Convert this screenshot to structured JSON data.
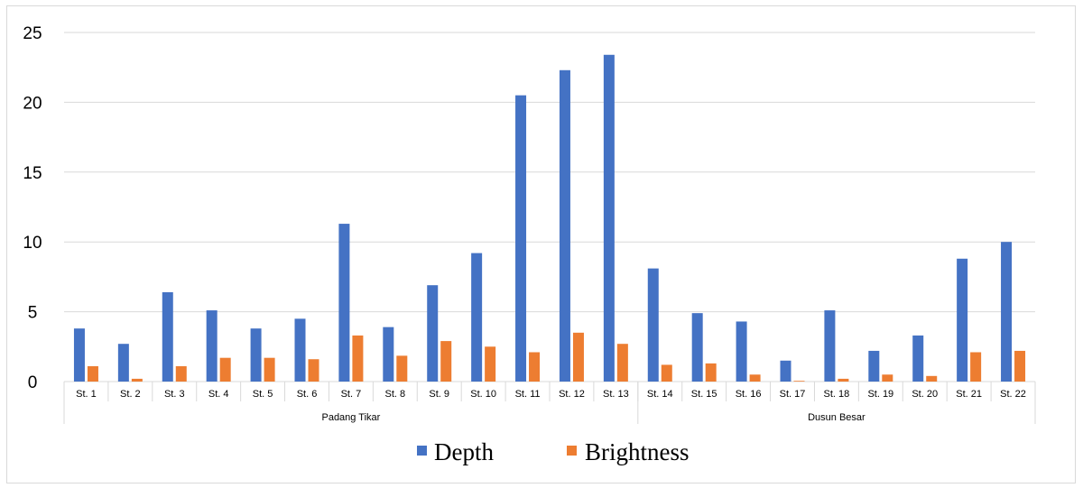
{
  "chart_data": {
    "type": "bar",
    "categories": [
      "St. 1",
      "St. 2",
      "St. 3",
      "St. 4",
      "St. 5",
      "St. 6",
      "St. 7",
      "St. 8",
      "St. 9",
      "St. 10",
      "St. 11",
      "St. 12",
      "St. 13",
      "St. 14",
      "St. 15",
      "St. 16",
      "St. 17",
      "St. 18",
      "St. 19",
      "St. 20",
      "St. 21",
      "St. 22"
    ],
    "groups": [
      {
        "label": "Padang Tikar",
        "categories": 13
      },
      {
        "label": "Dusun Besar",
        "categories": 9
      }
    ],
    "series": [
      {
        "name": "Depth",
        "color": "#4472c4",
        "values": [
          3.8,
          2.7,
          6.4,
          5.1,
          3.8,
          4.5,
          11.3,
          3.9,
          6.9,
          9.2,
          20.5,
          22.3,
          23.4,
          8.1,
          4.9,
          4.3,
          1.5,
          5.1,
          2.2,
          3.3,
          8.8,
          10.0
        ]
      },
      {
        "name": "Brightness",
        "color": "#ed7d31",
        "values": [
          1.1,
          0.2,
          1.1,
          1.7,
          1.7,
          1.6,
          3.3,
          1.85,
          2.9,
          2.5,
          2.1,
          3.5,
          2.7,
          1.2,
          1.3,
          0.5,
          0.05,
          0.2,
          0.5,
          0.4,
          2.1,
          2.2
        ]
      }
    ],
    "y_ticks": [
      "0",
      "5",
      "10",
      "15",
      "20",
      "25"
    ],
    "ylim": [
      0,
      25
    ],
    "title": "",
    "xlabel": "",
    "ylabel": "",
    "grid": true,
    "legend_position": "bottom"
  }
}
